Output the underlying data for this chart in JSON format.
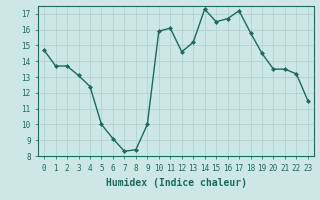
{
  "x": [
    0,
    1,
    2,
    3,
    4,
    5,
    6,
    7,
    8,
    9,
    10,
    11,
    12,
    13,
    14,
    15,
    16,
    17,
    18,
    19,
    20,
    21,
    22,
    23
  ],
  "y": [
    14.7,
    13.7,
    13.7,
    13.1,
    12.4,
    10.0,
    9.1,
    8.3,
    8.4,
    10.0,
    15.9,
    16.1,
    14.6,
    15.2,
    17.3,
    16.5,
    16.7,
    17.2,
    15.8,
    14.5,
    13.5,
    13.5,
    13.2,
    11.5
  ],
  "line_color": "#1a6b5a",
  "marker": "D",
  "markersize": 2,
  "linewidth": 1.0,
  "bg_color": "#cde8e4",
  "grid_color": "#b0ceca",
  "xlabel": "Humidex (Indice chaleur)",
  "xlabel_fontsize": 7,
  "xlim": [
    -0.5,
    23.5
  ],
  "ylim": [
    8,
    17.5
  ],
  "yticks": [
    8,
    9,
    10,
    11,
    12,
    13,
    14,
    15,
    16,
    17
  ],
  "xticks": [
    0,
    1,
    2,
    3,
    4,
    5,
    6,
    7,
    8,
    9,
    10,
    11,
    12,
    13,
    14,
    15,
    16,
    17,
    18,
    19,
    20,
    21,
    22,
    23
  ],
  "tick_fontsize": 5.5
}
